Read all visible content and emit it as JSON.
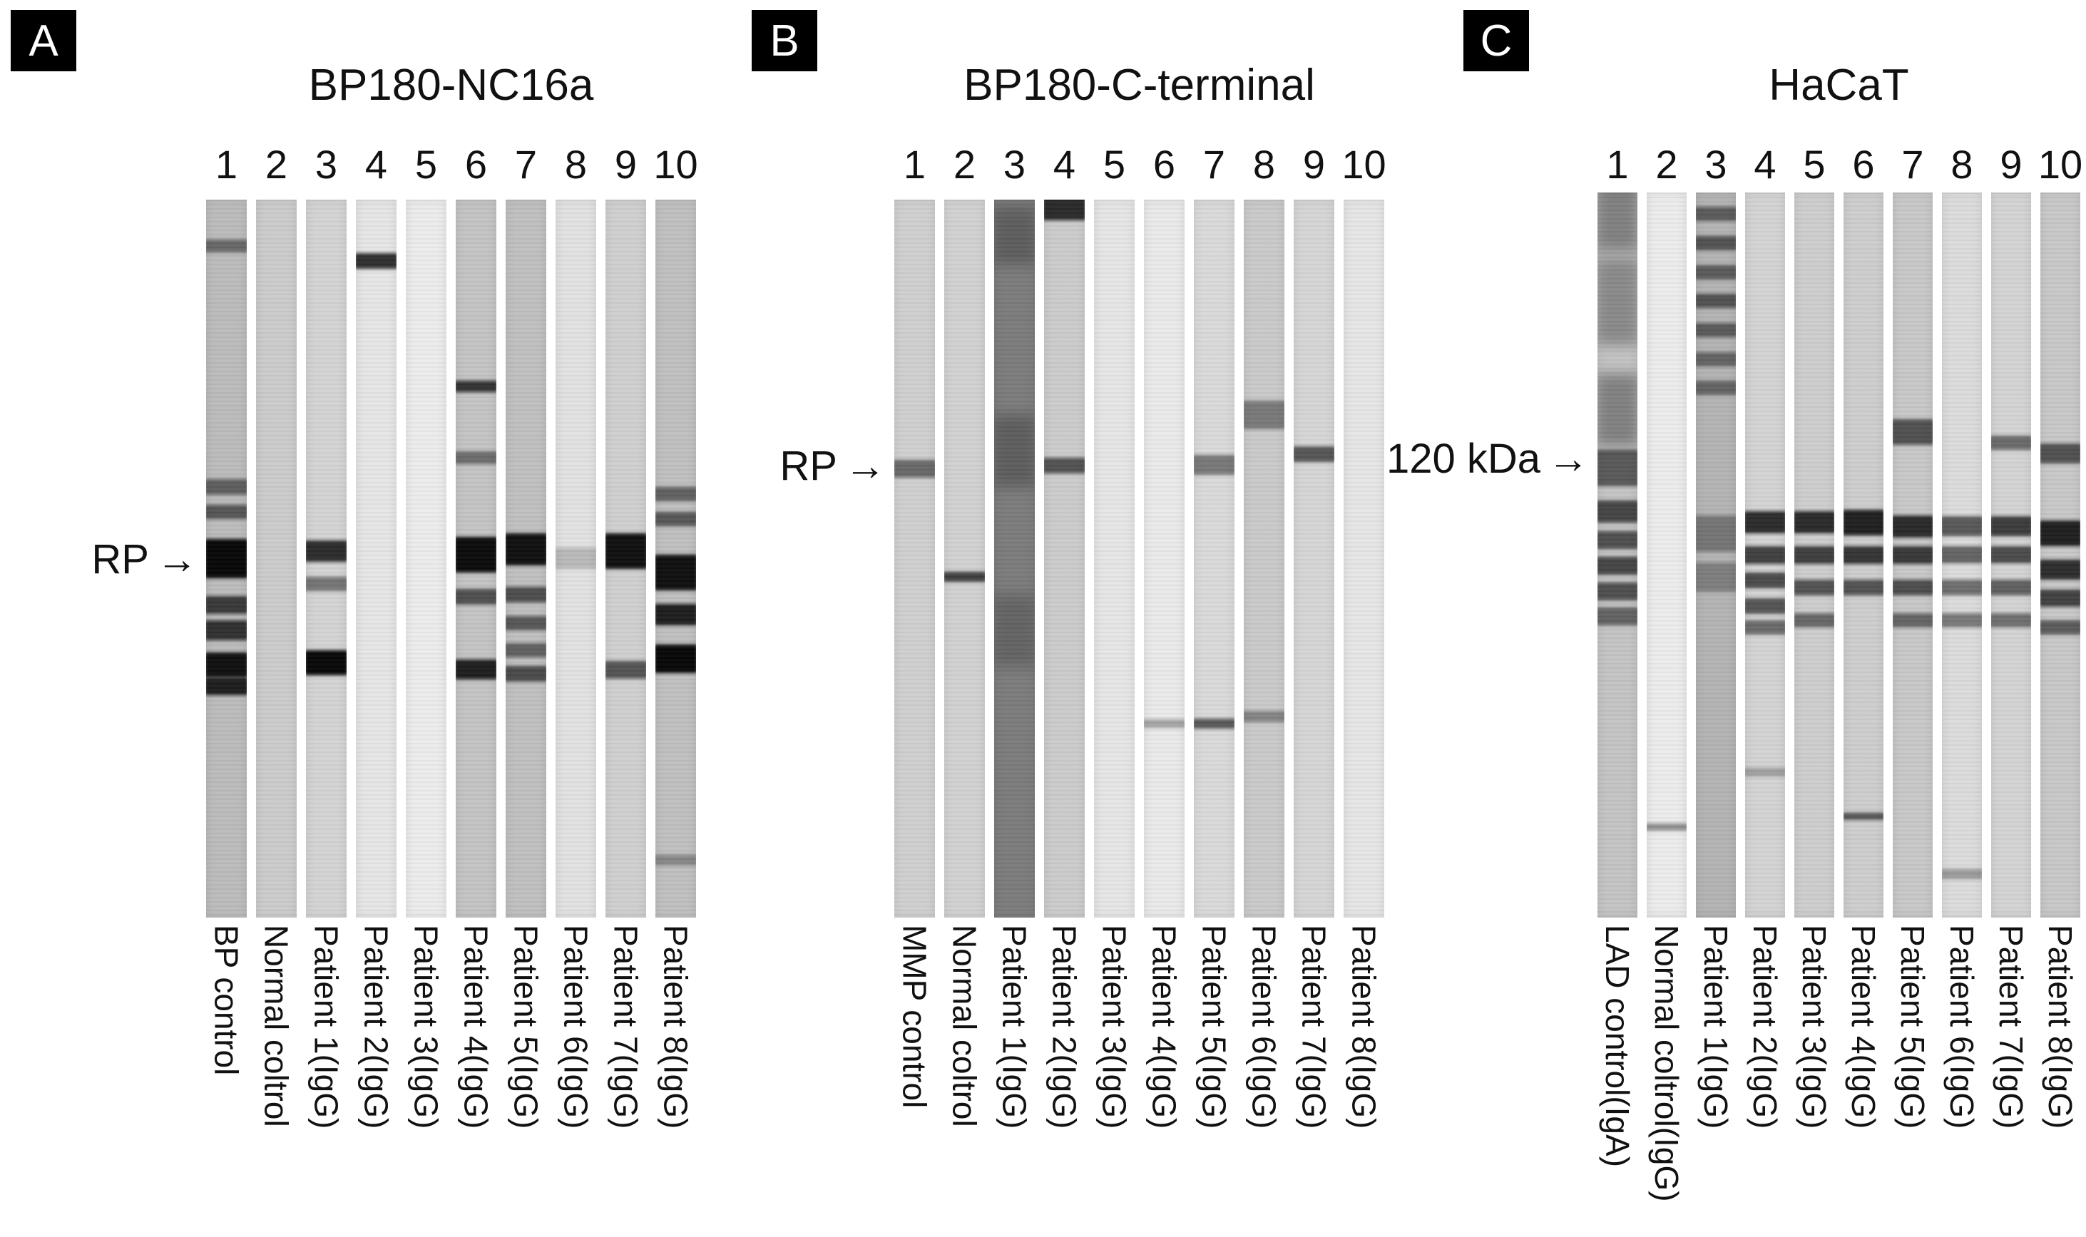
{
  "figure": {
    "background": "#ffffff",
    "arrow_glyph": "→",
    "panels": [
      {
        "letter": "A",
        "title": "BP180-NC16a",
        "marker_label": "RP",
        "marker_arrow": "→",
        "marker_y": 0.5,
        "lane_numbers": [
          "1",
          "2",
          "3",
          "4",
          "5",
          "6",
          "7",
          "8",
          "9",
          "10"
        ],
        "lane_labels": [
          "BP control",
          "Normal coltrol",
          "Patient 1(IgG)",
          "Patient 2(IgG)",
          "Patient 3(IgG)",
          "Patient 4(IgG)",
          "Patient 5(IgG)",
          "Patient 6(IgG)",
          "Patient 7(IgG)",
          "Patient 8(IgG)"
        ],
        "lanes": [
          {
            "base": 0.34,
            "bands": [
              {
                "p": 0.065,
                "d": 0.45,
                "w": 0.018
              },
              {
                "p": 0.4,
                "d": 0.5,
                "w": 0.022
              },
              {
                "p": 0.435,
                "d": 0.55,
                "w": 0.02
              },
              {
                "p": 0.5,
                "d": 0.97,
                "w": 0.055
              },
              {
                "p": 0.565,
                "d": 0.7,
                "w": 0.025
              },
              {
                "p": 0.6,
                "d": 0.75,
                "w": 0.028
              },
              {
                "p": 0.648,
                "d": 0.92,
                "w": 0.035
              },
              {
                "p": 0.678,
                "d": 0.85,
                "w": 0.025
              }
            ]
          },
          {
            "base": 0.26,
            "bands": []
          },
          {
            "base": 0.22,
            "bands": [
              {
                "p": 0.49,
                "d": 0.8,
                "w": 0.03
              },
              {
                "p": 0.535,
                "d": 0.45,
                "w": 0.02
              },
              {
                "p": 0.645,
                "d": 0.97,
                "w": 0.035
              }
            ]
          },
          {
            "base": 0.13,
            "bands": [
              {
                "p": 0.085,
                "d": 0.8,
                "w": 0.022
              }
            ]
          },
          {
            "base": 0.1,
            "bands": []
          },
          {
            "base": 0.3,
            "bands": [
              {
                "p": 0.26,
                "d": 0.75,
                "w": 0.016
              },
              {
                "p": 0.36,
                "d": 0.45,
                "w": 0.018
              },
              {
                "p": 0.495,
                "d": 0.95,
                "w": 0.05
              },
              {
                "p": 0.553,
                "d": 0.6,
                "w": 0.022
              },
              {
                "p": 0.655,
                "d": 0.85,
                "w": 0.028
              }
            ]
          },
          {
            "base": 0.32,
            "bands": [
              {
                "p": 0.487,
                "d": 0.92,
                "w": 0.045
              },
              {
                "p": 0.55,
                "d": 0.6,
                "w": 0.022
              },
              {
                "p": 0.59,
                "d": 0.55,
                "w": 0.02
              },
              {
                "p": 0.628,
                "d": 0.5,
                "w": 0.02
              },
              {
                "p": 0.66,
                "d": 0.62,
                "w": 0.022
              }
            ]
          },
          {
            "base": 0.15,
            "bands": [
              {
                "p": 0.5,
                "d": 0.18,
                "w": 0.03
              }
            ]
          },
          {
            "base": 0.24,
            "bands": [
              {
                "p": 0.49,
                "d": 0.93,
                "w": 0.05
              },
              {
                "p": 0.655,
                "d": 0.6,
                "w": 0.025
              }
            ]
          },
          {
            "base": 0.32,
            "bands": [
              {
                "p": 0.41,
                "d": 0.5,
                "w": 0.02
              },
              {
                "p": 0.445,
                "d": 0.55,
                "w": 0.02
              },
              {
                "p": 0.52,
                "d": 0.93,
                "w": 0.05
              },
              {
                "p": 0.578,
                "d": 0.85,
                "w": 0.03
              },
              {
                "p": 0.64,
                "d": 0.97,
                "w": 0.04
              },
              {
                "p": 0.92,
                "d": 0.3,
                "w": 0.015
              }
            ]
          }
        ]
      },
      {
        "letter": "B",
        "title": "BP180-C-terminal",
        "marker_label": "RP",
        "marker_arrow": "→",
        "marker_y": 0.37,
        "lane_numbers": [
          "1",
          "2",
          "3",
          "4",
          "5",
          "6",
          "7",
          "8",
          "9",
          "10"
        ],
        "lane_labels": [
          "MMP control",
          "Normal coltrol",
          "Patient 1(IgG)",
          "Patient 2(IgG)",
          "Patient 3(IgG)",
          "Patient 4(IgG)",
          "Patient 5(IgG)",
          "Patient 6(IgG)",
          "Patient 7(IgG)",
          "Patient 8(IgG)"
        ],
        "lanes": [
          {
            "base": 0.24,
            "bands": [
              {
                "p": 0.375,
                "d": 0.5,
                "w": 0.025
              }
            ]
          },
          {
            "base": 0.23,
            "bands": [
              {
                "p": 0.525,
                "d": 0.7,
                "w": 0.014
              }
            ]
          },
          {
            "base": 0.66,
            "bands": [
              {
                "p": 0.05,
                "d": 0.25,
                "w": 0.08
              },
              {
                "p": 0.35,
                "d": 0.25,
                "w": 0.1
              },
              {
                "p": 0.6,
                "d": 0.2,
                "w": 0.1
              }
            ]
          },
          {
            "base": 0.26,
            "bands": [
              {
                "p": 0.012,
                "d": 0.8,
                "w": 0.035
              },
              {
                "p": 0.37,
                "d": 0.6,
                "w": 0.022
              }
            ]
          },
          {
            "base": 0.13,
            "bands": []
          },
          {
            "base": 0.11,
            "bands": [
              {
                "p": 0.73,
                "d": 0.3,
                "w": 0.012
              }
            ]
          },
          {
            "base": 0.19,
            "bands": [
              {
                "p": 0.37,
                "d": 0.45,
                "w": 0.028
              },
              {
                "p": 0.73,
                "d": 0.6,
                "w": 0.014
              }
            ]
          },
          {
            "base": 0.27,
            "bands": [
              {
                "p": 0.3,
                "d": 0.4,
                "w": 0.04
              },
              {
                "p": 0.72,
                "d": 0.35,
                "w": 0.016
              }
            ]
          },
          {
            "base": 0.21,
            "bands": [
              {
                "p": 0.355,
                "d": 0.6,
                "w": 0.022
              }
            ]
          },
          {
            "base": 0.13,
            "bands": []
          }
        ]
      },
      {
        "letter": "C",
        "title": "HaCaT",
        "marker_label": "120 kDa",
        "marker_arrow": "→",
        "marker_y": 0.367,
        "lane_numbers": [
          "1",
          "2",
          "3",
          "4",
          "5",
          "6",
          "7",
          "8",
          "9",
          "10"
        ],
        "lane_labels": [
          "LAD control(IgA)",
          "Normal coltrol(IgG)",
          "Patient 1(IgG)",
          "Patient 2(IgG)",
          "Patient 3(IgG)",
          "Patient 4(IgG)",
          "Patient 5(IgG)",
          "Patient 6(IgG)",
          "Patient 7(IgG)",
          "Patient 8(IgG)"
        ],
        "lanes": [
          {
            "base": 0.3,
            "bands": [
              {
                "p": 0.03,
                "d": 0.35,
                "w": 0.1
              },
              {
                "p": 0.15,
                "d": 0.3,
                "w": 0.12
              },
              {
                "p": 0.3,
                "d": 0.35,
                "w": 0.1
              },
              {
                "p": 0.38,
                "d": 0.55,
                "w": 0.05
              },
              {
                "p": 0.44,
                "d": 0.65,
                "w": 0.03
              },
              {
                "p": 0.48,
                "d": 0.6,
                "w": 0.025
              },
              {
                "p": 0.515,
                "d": 0.65,
                "w": 0.025
              },
              {
                "p": 0.55,
                "d": 0.6,
                "w": 0.025
              },
              {
                "p": 0.585,
                "d": 0.5,
                "w": 0.025
              }
            ]
          },
          {
            "base": 0.1,
            "bands": [
              {
                "p": 0.875,
                "d": 0.4,
                "w": 0.01
              }
            ]
          },
          {
            "base": 0.38,
            "bands": [
              {
                "p": 0.03,
                "d": 0.5,
                "w": 0.02
              },
              {
                "p": 0.07,
                "d": 0.55,
                "w": 0.02
              },
              {
                "p": 0.11,
                "d": 0.5,
                "w": 0.02
              },
              {
                "p": 0.15,
                "d": 0.55,
                "w": 0.02
              },
              {
                "p": 0.19,
                "d": 0.5,
                "w": 0.02
              },
              {
                "p": 0.23,
                "d": 0.45,
                "w": 0.02
              },
              {
                "p": 0.27,
                "d": 0.45,
                "w": 0.02
              },
              {
                "p": 0.47,
                "d": 0.35,
                "w": 0.05
              },
              {
                "p": 0.53,
                "d": 0.3,
                "w": 0.04
              }
            ]
          },
          {
            "base": 0.22,
            "bands": [
              {
                "p": 0.455,
                "d": 0.8,
                "w": 0.03
              },
              {
                "p": 0.5,
                "d": 0.7,
                "w": 0.025
              },
              {
                "p": 0.535,
                "d": 0.65,
                "w": 0.022
              },
              {
                "p": 0.57,
                "d": 0.6,
                "w": 0.022
              },
              {
                "p": 0.6,
                "d": 0.5,
                "w": 0.02
              },
              {
                "p": 0.8,
                "d": 0.25,
                "w": 0.012
              }
            ]
          },
          {
            "base": 0.25,
            "bands": [
              {
                "p": 0.455,
                "d": 0.8,
                "w": 0.03
              },
              {
                "p": 0.5,
                "d": 0.7,
                "w": 0.025
              },
              {
                "p": 0.545,
                "d": 0.6,
                "w": 0.022
              },
              {
                "p": 0.59,
                "d": 0.5,
                "w": 0.02
              }
            ]
          },
          {
            "base": 0.25,
            "bands": [
              {
                "p": 0.455,
                "d": 0.85,
                "w": 0.035
              },
              {
                "p": 0.5,
                "d": 0.75,
                "w": 0.025
              },
              {
                "p": 0.545,
                "d": 0.6,
                "w": 0.022
              },
              {
                "p": 0.86,
                "d": 0.6,
                "w": 0.01
              }
            ]
          },
          {
            "base": 0.28,
            "bands": [
              {
                "p": 0.33,
                "d": 0.6,
                "w": 0.035
              },
              {
                "p": 0.46,
                "d": 0.8,
                "w": 0.03
              },
              {
                "p": 0.5,
                "d": 0.72,
                "w": 0.025
              },
              {
                "p": 0.545,
                "d": 0.62,
                "w": 0.022
              },
              {
                "p": 0.59,
                "d": 0.5,
                "w": 0.02
              }
            ]
          },
          {
            "base": 0.18,
            "bands": [
              {
                "p": 0.46,
                "d": 0.6,
                "w": 0.028
              },
              {
                "p": 0.5,
                "d": 0.55,
                "w": 0.024
              },
              {
                "p": 0.545,
                "d": 0.5,
                "w": 0.022
              },
              {
                "p": 0.59,
                "d": 0.45,
                "w": 0.02
              },
              {
                "p": 0.94,
                "d": 0.3,
                "w": 0.014
              }
            ]
          },
          {
            "base": 0.22,
            "bands": [
              {
                "p": 0.345,
                "d": 0.5,
                "w": 0.02
              },
              {
                "p": 0.46,
                "d": 0.72,
                "w": 0.028
              },
              {
                "p": 0.5,
                "d": 0.65,
                "w": 0.024
              },
              {
                "p": 0.545,
                "d": 0.55,
                "w": 0.022
              },
              {
                "p": 0.59,
                "d": 0.48,
                "w": 0.02
              }
            ]
          },
          {
            "base": 0.28,
            "bands": [
              {
                "p": 0.36,
                "d": 0.6,
                "w": 0.028
              },
              {
                "p": 0.47,
                "d": 0.85,
                "w": 0.035
              },
              {
                "p": 0.52,
                "d": 0.78,
                "w": 0.028
              },
              {
                "p": 0.56,
                "d": 0.68,
                "w": 0.024
              },
              {
                "p": 0.6,
                "d": 0.55,
                "w": 0.02
              }
            ]
          }
        ]
      }
    ]
  }
}
